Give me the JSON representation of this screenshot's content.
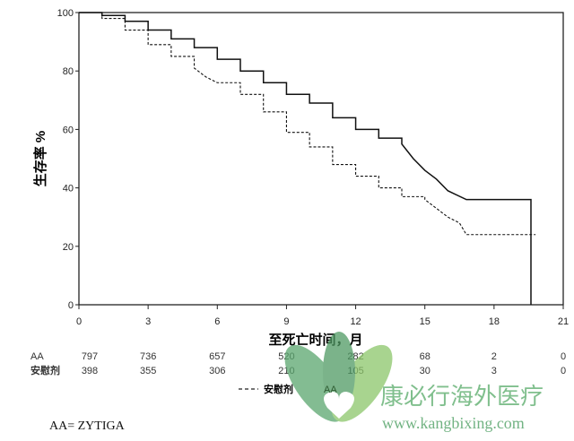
{
  "chart_data": {
    "type": "line",
    "subtype": "kaplan-meier step",
    "xlabel": "至死亡时间，月",
    "ylabel": "生存率 %",
    "xlim": [
      0,
      21
    ],
    "ylim": [
      0,
      100
    ],
    "xticks": [
      0,
      3,
      6,
      9,
      12,
      15,
      18,
      21
    ],
    "yticks": [
      0,
      20,
      40,
      60,
      80,
      100
    ],
    "grid": false,
    "legend": {
      "placement": "bottom-center",
      "entries": [
        "安慰剂",
        "AA"
      ]
    },
    "series": [
      {
        "name": "AA",
        "style": "solid",
        "x": [
          0,
          1,
          2,
          3,
          4,
          5,
          6,
          7,
          8,
          9,
          10,
          11,
          12,
          13,
          14,
          14.5,
          15,
          15.5,
          16,
          16.8,
          19.6,
          19.6
        ],
        "y": [
          100,
          99,
          97,
          94,
          91,
          88,
          84,
          80,
          76,
          72,
          69,
          64,
          60,
          57,
          55,
          50,
          46,
          43,
          39,
          36,
          36,
          0
        ]
      },
      {
        "name": "安慰剂",
        "style": "dashed",
        "x": [
          0,
          1,
          2,
          3,
          4,
          5,
          5.5,
          6,
          7,
          8,
          9,
          10,
          11,
          12,
          13,
          14,
          15,
          15.5,
          16,
          16.5,
          16.8,
          19.8
        ],
        "y": [
          100,
          98,
          94,
          89,
          85,
          81,
          78,
          76,
          72,
          66,
          59,
          54,
          48,
          44,
          40,
          37,
          36,
          33,
          30,
          28,
          24,
          24
        ]
      }
    ],
    "risk_table": {
      "times": [
        0,
        3,
        6,
        9,
        12,
        15,
        18,
        21
      ],
      "rows": [
        {
          "label": "AA",
          "values": [
            "797",
            "736",
            "657",
            "520",
            "282",
            "68",
            "2",
            "0"
          ]
        },
        {
          "label": "安慰剂",
          "values": [
            "398",
            "355",
            "306",
            "210",
            "105",
            "30",
            "3",
            "0"
          ]
        }
      ]
    }
  },
  "footnote": "AA= ZYTIGA",
  "watermark": {
    "title": "康必行海外医疗",
    "url": "www.kangbixing.com",
    "colors": [
      "#5aa66e",
      "#8cc66a"
    ]
  }
}
